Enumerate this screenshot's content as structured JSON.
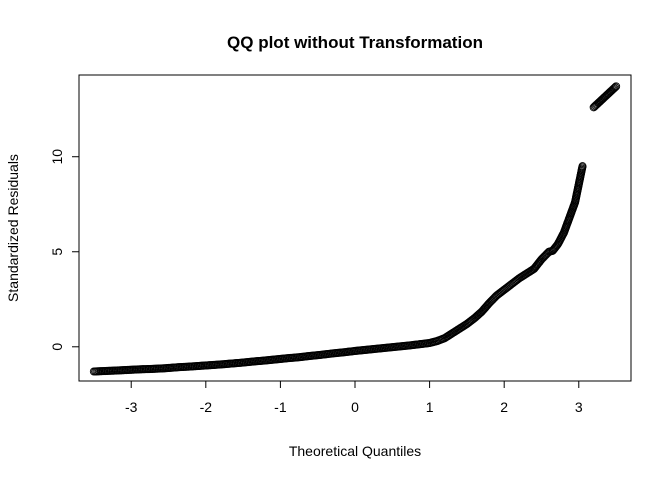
{
  "chart_data": {
    "type": "scatter",
    "title": "QQ plot without Transformation",
    "xlabel": "Theoretical Quantiles",
    "ylabel": "Standardized Residuals",
    "xlim": [
      -3.7,
      3.7
    ],
    "ylim": [
      -1.8,
      14.3
    ],
    "x_ticks": [
      -3,
      -2,
      -1,
      0,
      1,
      2,
      3
    ],
    "y_ticks": [
      0,
      5,
      10
    ],
    "grid": false,
    "legend": "none",
    "marker": "open-circle",
    "series": [
      {
        "points": [
          [
            -3.5,
            -1.3
          ],
          [
            -3.2,
            -1.25
          ],
          [
            -3.05,
            -1.22
          ],
          [
            -2.95,
            -1.2
          ],
          [
            -2.85,
            -1.18
          ],
          [
            -2.75,
            -1.17
          ],
          [
            -2.65,
            -1.15
          ],
          [
            -2.55,
            -1.13
          ],
          [
            -2.45,
            -1.1
          ],
          [
            -2.35,
            -1.07
          ],
          [
            -2.25,
            -1.05
          ],
          [
            -2.1,
            -1.01
          ],
          [
            -1.95,
            -0.97
          ],
          [
            -1.8,
            -0.93
          ],
          [
            -1.65,
            -0.88
          ],
          [
            -1.5,
            -0.83
          ],
          [
            -1.35,
            -0.77
          ],
          [
            -1.2,
            -0.72
          ],
          [
            -1.05,
            -0.66
          ],
          [
            -0.9,
            -0.6
          ],
          [
            -0.75,
            -0.55
          ],
          [
            -0.6,
            -0.48
          ],
          [
            -0.45,
            -0.42
          ],
          [
            -0.3,
            -0.35
          ],
          [
            -0.15,
            -0.29
          ],
          [
            0.0,
            -0.22
          ],
          [
            0.15,
            -0.16
          ],
          [
            0.3,
            -0.1
          ],
          [
            0.45,
            -0.04
          ],
          [
            0.6,
            0.02
          ],
          [
            0.75,
            0.08
          ],
          [
            0.9,
            0.15
          ],
          [
            1.0,
            0.2
          ],
          [
            1.1,
            0.3
          ],
          [
            1.2,
            0.45
          ],
          [
            1.3,
            0.7
          ],
          [
            1.4,
            0.95
          ],
          [
            1.5,
            1.2
          ],
          [
            1.6,
            1.5
          ],
          [
            1.7,
            1.85
          ],
          [
            1.8,
            2.3
          ],
          [
            1.9,
            2.7
          ],
          [
            2.0,
            3.0
          ],
          [
            2.1,
            3.3
          ],
          [
            2.2,
            3.6
          ],
          [
            2.3,
            3.85
          ],
          [
            2.4,
            4.1
          ],
          [
            2.5,
            4.6
          ],
          [
            2.55,
            4.8
          ],
          [
            2.6,
            5.0
          ],
          [
            2.65,
            5.05
          ],
          [
            2.72,
            5.4
          ],
          [
            2.8,
            6.0
          ],
          [
            2.88,
            6.85
          ],
          [
            2.95,
            7.6
          ],
          [
            3.05,
            9.5
          ],
          [
            3.2,
            12.6
          ],
          [
            3.5,
            13.7
          ]
        ]
      }
    ]
  }
}
